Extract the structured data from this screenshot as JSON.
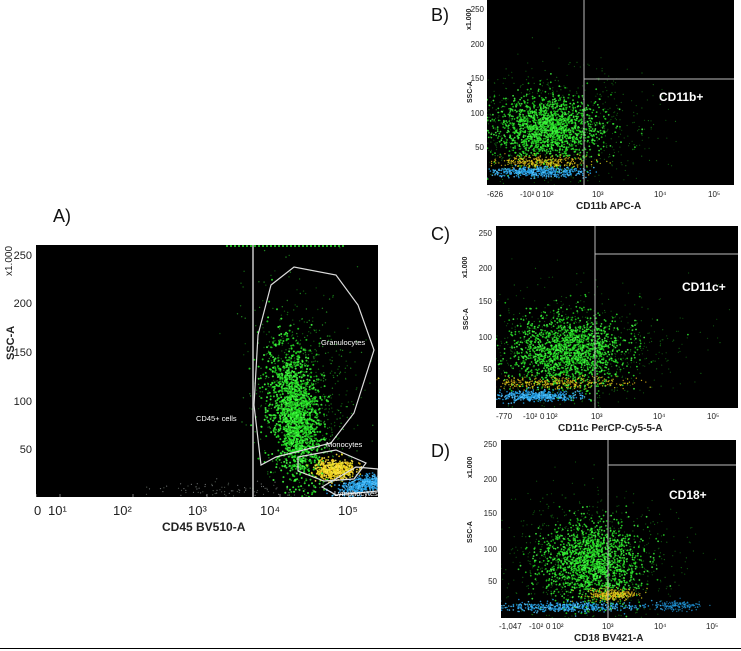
{
  "chart_data": [
    {
      "panel": "A)",
      "type": "scatter",
      "xlabel": "CD45 BV510-A",
      "ylabel": "SSC-A",
      "y_multiplier": "x1.000",
      "x_scale": "log",
      "x_ticks": [
        "0",
        "10¹",
        "10²",
        "10³",
        "10⁴",
        "10⁵"
      ],
      "y_ticks": [
        "50",
        "100",
        "150",
        "200",
        "250"
      ],
      "gate_line_x": "6e3",
      "gates": [
        {
          "name": "Granulocytes"
        },
        {
          "name": "Monocytes"
        },
        {
          "name": "Lymphocytes"
        }
      ],
      "annotations": [
        "CD45+ cells"
      ],
      "populations": [
        {
          "color": "#2ee82e",
          "x_log10": 4.2,
          "y": 85
        },
        {
          "color": "#e6dd1e",
          "x_log10": 4.75,
          "y": 28
        },
        {
          "color": "#27a5e8",
          "x_log10": 5.1,
          "y": 12
        }
      ]
    },
    {
      "panel": "B)",
      "type": "scatter",
      "xlabel": "CD11b APC-A",
      "ylabel": "SSC-A",
      "y_multiplier": "x1.000",
      "x_ticks": [
        "-626",
        "-10²",
        "0",
        "10²",
        "10³",
        "10⁴",
        "10⁵"
      ],
      "y_ticks": [
        "50",
        "100",
        "150",
        "200",
        "250"
      ],
      "quadrant_label": "CD11b+"
    },
    {
      "panel": "C)",
      "type": "scatter",
      "xlabel": "CD11c PerCP-Cy5-5-A",
      "ylabel": "SSC-A",
      "y_multiplier": "x1.000",
      "x_ticks": [
        "-770",
        "-10²",
        "0",
        "10²",
        "10³",
        "10⁴",
        "10⁵"
      ],
      "y_ticks": [
        "50",
        "100",
        "150",
        "200",
        "250"
      ],
      "quadrant_label": "CD11c+"
    },
    {
      "panel": "D)",
      "type": "scatter",
      "xlabel": "CD18 BV421-A",
      "ylabel": "SSC-A",
      "y_multiplier": "x1.000",
      "x_ticks": [
        "-1,047",
        "-10²",
        "0",
        "10²",
        "10³",
        "10⁴",
        "10⁵"
      ],
      "y_ticks": [
        "50",
        "100",
        "150",
        "200",
        "250"
      ],
      "quadrant_label": "CD18+"
    }
  ]
}
